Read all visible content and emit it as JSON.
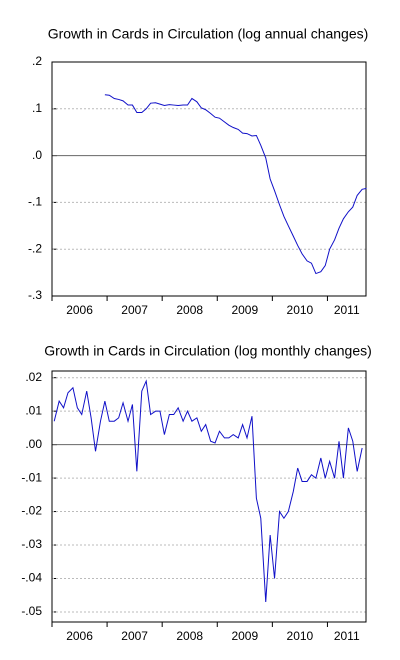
{
  "chart_data": [
    {
      "type": "line",
      "title": "Growth in Cards in Circulation (log annual changes)",
      "xlim": [
        2006,
        2011.7
      ],
      "xticks": [
        {
          "value": 2006,
          "label": "2006"
        },
        {
          "value": 2007,
          "label": "2007"
        },
        {
          "value": 2008,
          "label": "2008"
        },
        {
          "value": 2009,
          "label": "2009"
        },
        {
          "value": 2010,
          "label": "2010"
        },
        {
          "value": 2011,
          "label": "2011"
        }
      ],
      "ylim": [
        -0.3,
        0.2
      ],
      "yticks": [
        {
          "value": 0.2,
          "label": ".2"
        },
        {
          "value": 0.1,
          "label": ".1"
        },
        {
          "value": 0,
          "label": ".0"
        },
        {
          "value": -0.1,
          "label": "-.1"
        },
        {
          "value": -0.2,
          "label": "-.2"
        },
        {
          "value": -0.3,
          "label": "-.3"
        }
      ],
      "grid": true,
      "x": [
        2006.96,
        2007.04,
        2007.13,
        2007.21,
        2007.29,
        2007.38,
        2007.46,
        2007.54,
        2007.63,
        2007.71,
        2007.79,
        2007.88,
        2007.96,
        2008.04,
        2008.13,
        2008.21,
        2008.29,
        2008.38,
        2008.46,
        2008.54,
        2008.63,
        2008.71,
        2008.79,
        2008.88,
        2008.96,
        2009.04,
        2009.13,
        2009.21,
        2009.29,
        2009.38,
        2009.46,
        2009.54,
        2009.63,
        2009.71,
        2009.79,
        2009.88,
        2009.96,
        2010.04,
        2010.13,
        2010.21,
        2010.29,
        2010.38,
        2010.46,
        2010.54,
        2010.63,
        2010.71,
        2010.79,
        2010.88,
        2010.96,
        2011.04,
        2011.13,
        2011.21,
        2011.29,
        2011.38,
        2011.46,
        2011.54,
        2011.63,
        2011.71
      ],
      "series": [
        {
          "color": "#1010c8",
          "values": [
            0.13,
            0.129,
            0.122,
            0.12,
            0.117,
            0.108,
            0.108,
            0.092,
            0.092,
            0.1,
            0.112,
            0.113,
            0.11,
            0.107,
            0.109,
            0.108,
            0.107,
            0.108,
            0.108,
            0.122,
            0.115,
            0.102,
            0.098,
            0.09,
            0.082,
            0.08,
            0.072,
            0.065,
            0.06,
            0.056,
            0.048,
            0.047,
            0.042,
            0.043,
            0.022,
            -0.005,
            -0.05,
            -0.075,
            -0.105,
            -0.13,
            -0.15,
            -0.172,
            -0.192,
            -0.21,
            -0.225,
            -0.23,
            -0.252,
            -0.248,
            -0.235,
            -0.2,
            -0.18,
            -0.155,
            -0.135,
            -0.12,
            -0.11,
            -0.085,
            -0.072,
            -0.07
          ]
        }
      ]
    },
    {
      "type": "line",
      "title": "Growth in Cards in Circulation (log monthly changes)",
      "xlim": [
        2006,
        2011.7
      ],
      "xticks": [
        {
          "value": 2006,
          "label": "2006"
        },
        {
          "value": 2007,
          "label": "2007"
        },
        {
          "value": 2008,
          "label": "2008"
        },
        {
          "value": 2009,
          "label": "2009"
        },
        {
          "value": 2010,
          "label": "2010"
        },
        {
          "value": 2011,
          "label": "2011"
        }
      ],
      "ylim": [
        -0.053,
        0.022
      ],
      "yticks": [
        {
          "value": 0.02,
          "label": ".02"
        },
        {
          "value": 0.01,
          "label": ".01"
        },
        {
          "value": 0,
          "label": ".00"
        },
        {
          "value": -0.01,
          "label": "-.01"
        },
        {
          "value": -0.02,
          "label": "-.02"
        },
        {
          "value": -0.03,
          "label": "-.03"
        },
        {
          "value": -0.04,
          "label": "-.04"
        },
        {
          "value": -0.05,
          "label": "-.05"
        }
      ],
      "grid": true,
      "x": [
        2006.04,
        2006.13,
        2006.21,
        2006.29,
        2006.38,
        2006.46,
        2006.54,
        2006.63,
        2006.71,
        2006.79,
        2006.88,
        2006.96,
        2007.04,
        2007.13,
        2007.21,
        2007.29,
        2007.38,
        2007.46,
        2007.54,
        2007.63,
        2007.71,
        2007.79,
        2007.88,
        2007.96,
        2008.04,
        2008.13,
        2008.21,
        2008.29,
        2008.38,
        2008.46,
        2008.54,
        2008.63,
        2008.71,
        2008.79,
        2008.88,
        2008.96,
        2009.04,
        2009.13,
        2009.21,
        2009.29,
        2009.38,
        2009.46,
        2009.54,
        2009.63,
        2009.71,
        2009.79,
        2009.88,
        2009.96,
        2010.04,
        2010.13,
        2010.21,
        2010.29,
        2010.38,
        2010.46,
        2010.54,
        2010.63,
        2010.71,
        2010.79,
        2010.88,
        2010.96,
        2011.04,
        2011.13,
        2011.21,
        2011.29,
        2011.38,
        2011.46,
        2011.54,
        2011.63
      ],
      "series": [
        {
          "color": "#1010c8",
          "values": [
            0.007,
            0.013,
            0.011,
            0.0155,
            0.017,
            0.011,
            0.009,
            0.016,
            0.008,
            -0.002,
            0.007,
            0.013,
            0.007,
            0.007,
            0.008,
            0.0125,
            0.007,
            0.012,
            -0.008,
            0.016,
            0.019,
            0.009,
            0.01,
            0.01,
            0.003,
            0.009,
            0.009,
            0.011,
            0.007,
            0.01,
            0.007,
            0.008,
            0.004,
            0.006,
            0.001,
            0.0005,
            0.004,
            0.002,
            0.002,
            0.003,
            0.002,
            0.006,
            0.002,
            0.0085,
            -0.016,
            -0.022,
            -0.047,
            -0.027,
            -0.04,
            -0.02,
            -0.022,
            -0.02,
            -0.014,
            -0.007,
            -0.011,
            -0.011,
            -0.009,
            -0.01,
            -0.004,
            -0.01,
            -0.005,
            -0.01,
            0.001,
            -0.01,
            0.005,
            0.001,
            -0.008,
            -0.001
          ]
        }
      ]
    }
  ]
}
